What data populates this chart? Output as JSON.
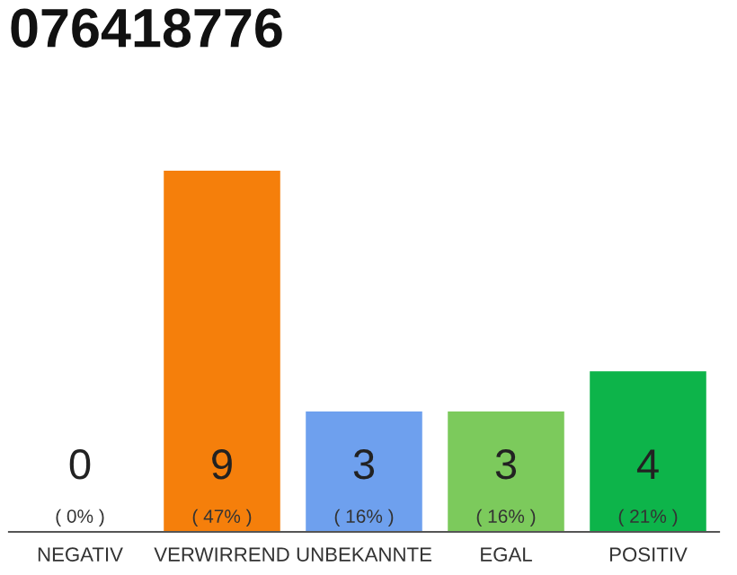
{
  "chart_data": {
    "type": "bar",
    "title": "076418776",
    "categories": [
      "NEGATIV",
      "VERWIRREND",
      "UNBEKANNTE",
      "EGAL",
      "POSITIV"
    ],
    "values": [
      0,
      9,
      3,
      3,
      4
    ],
    "colors": [
      "#9e9e9e",
      "#f57f0b",
      "#6ea0ee",
      "#7cca5c",
      "#0db44a"
    ],
    "value_labels": [
      "0\n( 0% )",
      "9\n( 47% )",
      "3\n( 16% )",
      "3\n( 16% )",
      "4\n( 21% )"
    ],
    "ylim": [
      0,
      9
    ],
    "grid": false,
    "legend": false
  }
}
